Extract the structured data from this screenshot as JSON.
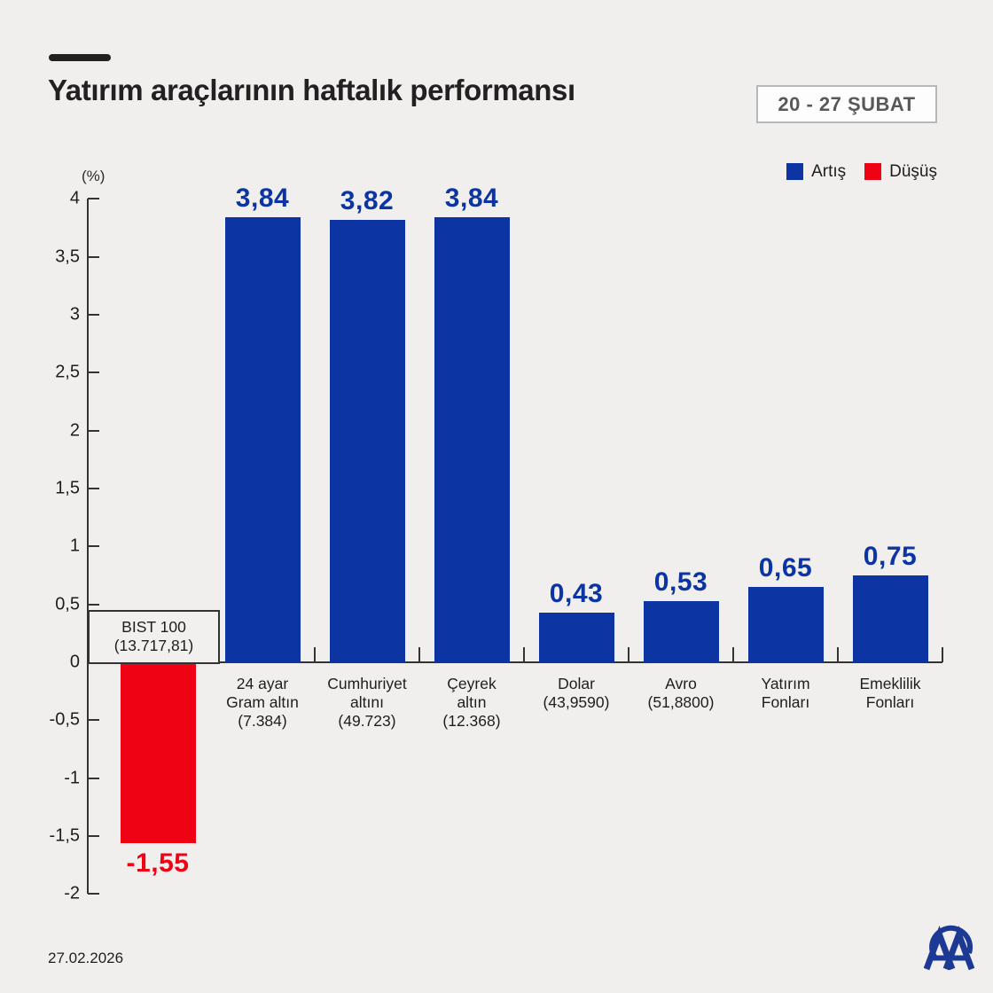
{
  "header": {
    "title": "Yatırım araçlarının haftalık performansı",
    "period": "20 - 27 ŞUBAT"
  },
  "legend": {
    "up": "Artış",
    "down": "Düşüş"
  },
  "colors": {
    "up": "#0c34a3",
    "down": "#ee0213",
    "background": "#f0efed",
    "ink": "#232021",
    "axis": "#333333",
    "badge_text": "#57585a",
    "logo_blue": "#1c3a94"
  },
  "axis": {
    "unit_label": "(%)",
    "tick_labels": [
      "4",
      "3,5",
      "3",
      "2,5",
      "2",
      "1,5",
      "1",
      "0,5",
      "0",
      "-0,5",
      "-1",
      "-1,5",
      "-2"
    ],
    "tick_values": [
      4,
      3.5,
      3,
      2.5,
      2,
      1.5,
      1,
      0.5,
      0,
      -0.5,
      -1,
      -1.5,
      -2
    ]
  },
  "chart_data": {
    "type": "bar",
    "title": "Yatırım araçlarının haftalık performansı",
    "period": "20 - 27 ŞUBAT",
    "xlabel": "",
    "ylabel": "(%)",
    "ylim": [
      -2,
      4
    ],
    "ytick_step": 0.5,
    "grid": false,
    "legend_position": "top-right",
    "legend_entries": [
      {
        "label": "Artış",
        "color": "#0c34a3"
      },
      {
        "label": "Düşüş",
        "color": "#ee0213"
      }
    ],
    "categories": [
      "BIST 100 (13.717,81)",
      "24 ayar Gram altın (7.384)",
      "Cumhuriyet altını (49.723)",
      "Çeyrek altın (12.368)",
      "Dolar (43,9590)",
      "Avro (51,8800)",
      "Yatırım Fonları",
      "Emeklilik Fonları"
    ],
    "values": [
      -1.55,
      3.84,
      3.82,
      3.84,
      0.43,
      0.53,
      0.65,
      0.75
    ],
    "bars": [
      {
        "label_lines": [
          "BIST 100",
          "(13.717,81)"
        ],
        "value": -1.55,
        "value_label": "-1,55",
        "direction": "down",
        "label_position": "boxed-above-axis"
      },
      {
        "label_lines": [
          "24 ayar",
          "Gram altın",
          "(7.384)"
        ],
        "value": 3.84,
        "value_label": "3,84",
        "direction": "up",
        "label_position": "below-axis"
      },
      {
        "label_lines": [
          "Cumhuriyet",
          "altını",
          "(49.723)"
        ],
        "value": 3.82,
        "value_label": "3,82",
        "direction": "up",
        "label_position": "below-axis"
      },
      {
        "label_lines": [
          "Çeyrek",
          "altın",
          "(12.368)"
        ],
        "value": 3.84,
        "value_label": "3,84",
        "direction": "up",
        "label_position": "below-axis"
      },
      {
        "label_lines": [
          "Dolar",
          "(43,9590)"
        ],
        "value": 0.43,
        "value_label": "0,43",
        "direction": "up",
        "label_position": "below-axis"
      },
      {
        "label_lines": [
          "Avro",
          "(51,8800)"
        ],
        "value": 0.53,
        "value_label": "0,53",
        "direction": "up",
        "label_position": "below-axis"
      },
      {
        "label_lines": [
          "Yatırım",
          "Fonları"
        ],
        "value": 0.65,
        "value_label": "0,65",
        "direction": "up",
        "label_position": "below-axis"
      },
      {
        "label_lines": [
          "Emeklilik",
          "Fonları"
        ],
        "value": 0.75,
        "value_label": "0,75",
        "direction": "up",
        "label_position": "below-axis"
      }
    ]
  },
  "footer": {
    "date": "27.02.2026",
    "logo": "aa-anadolu-ajansi-logo"
  }
}
